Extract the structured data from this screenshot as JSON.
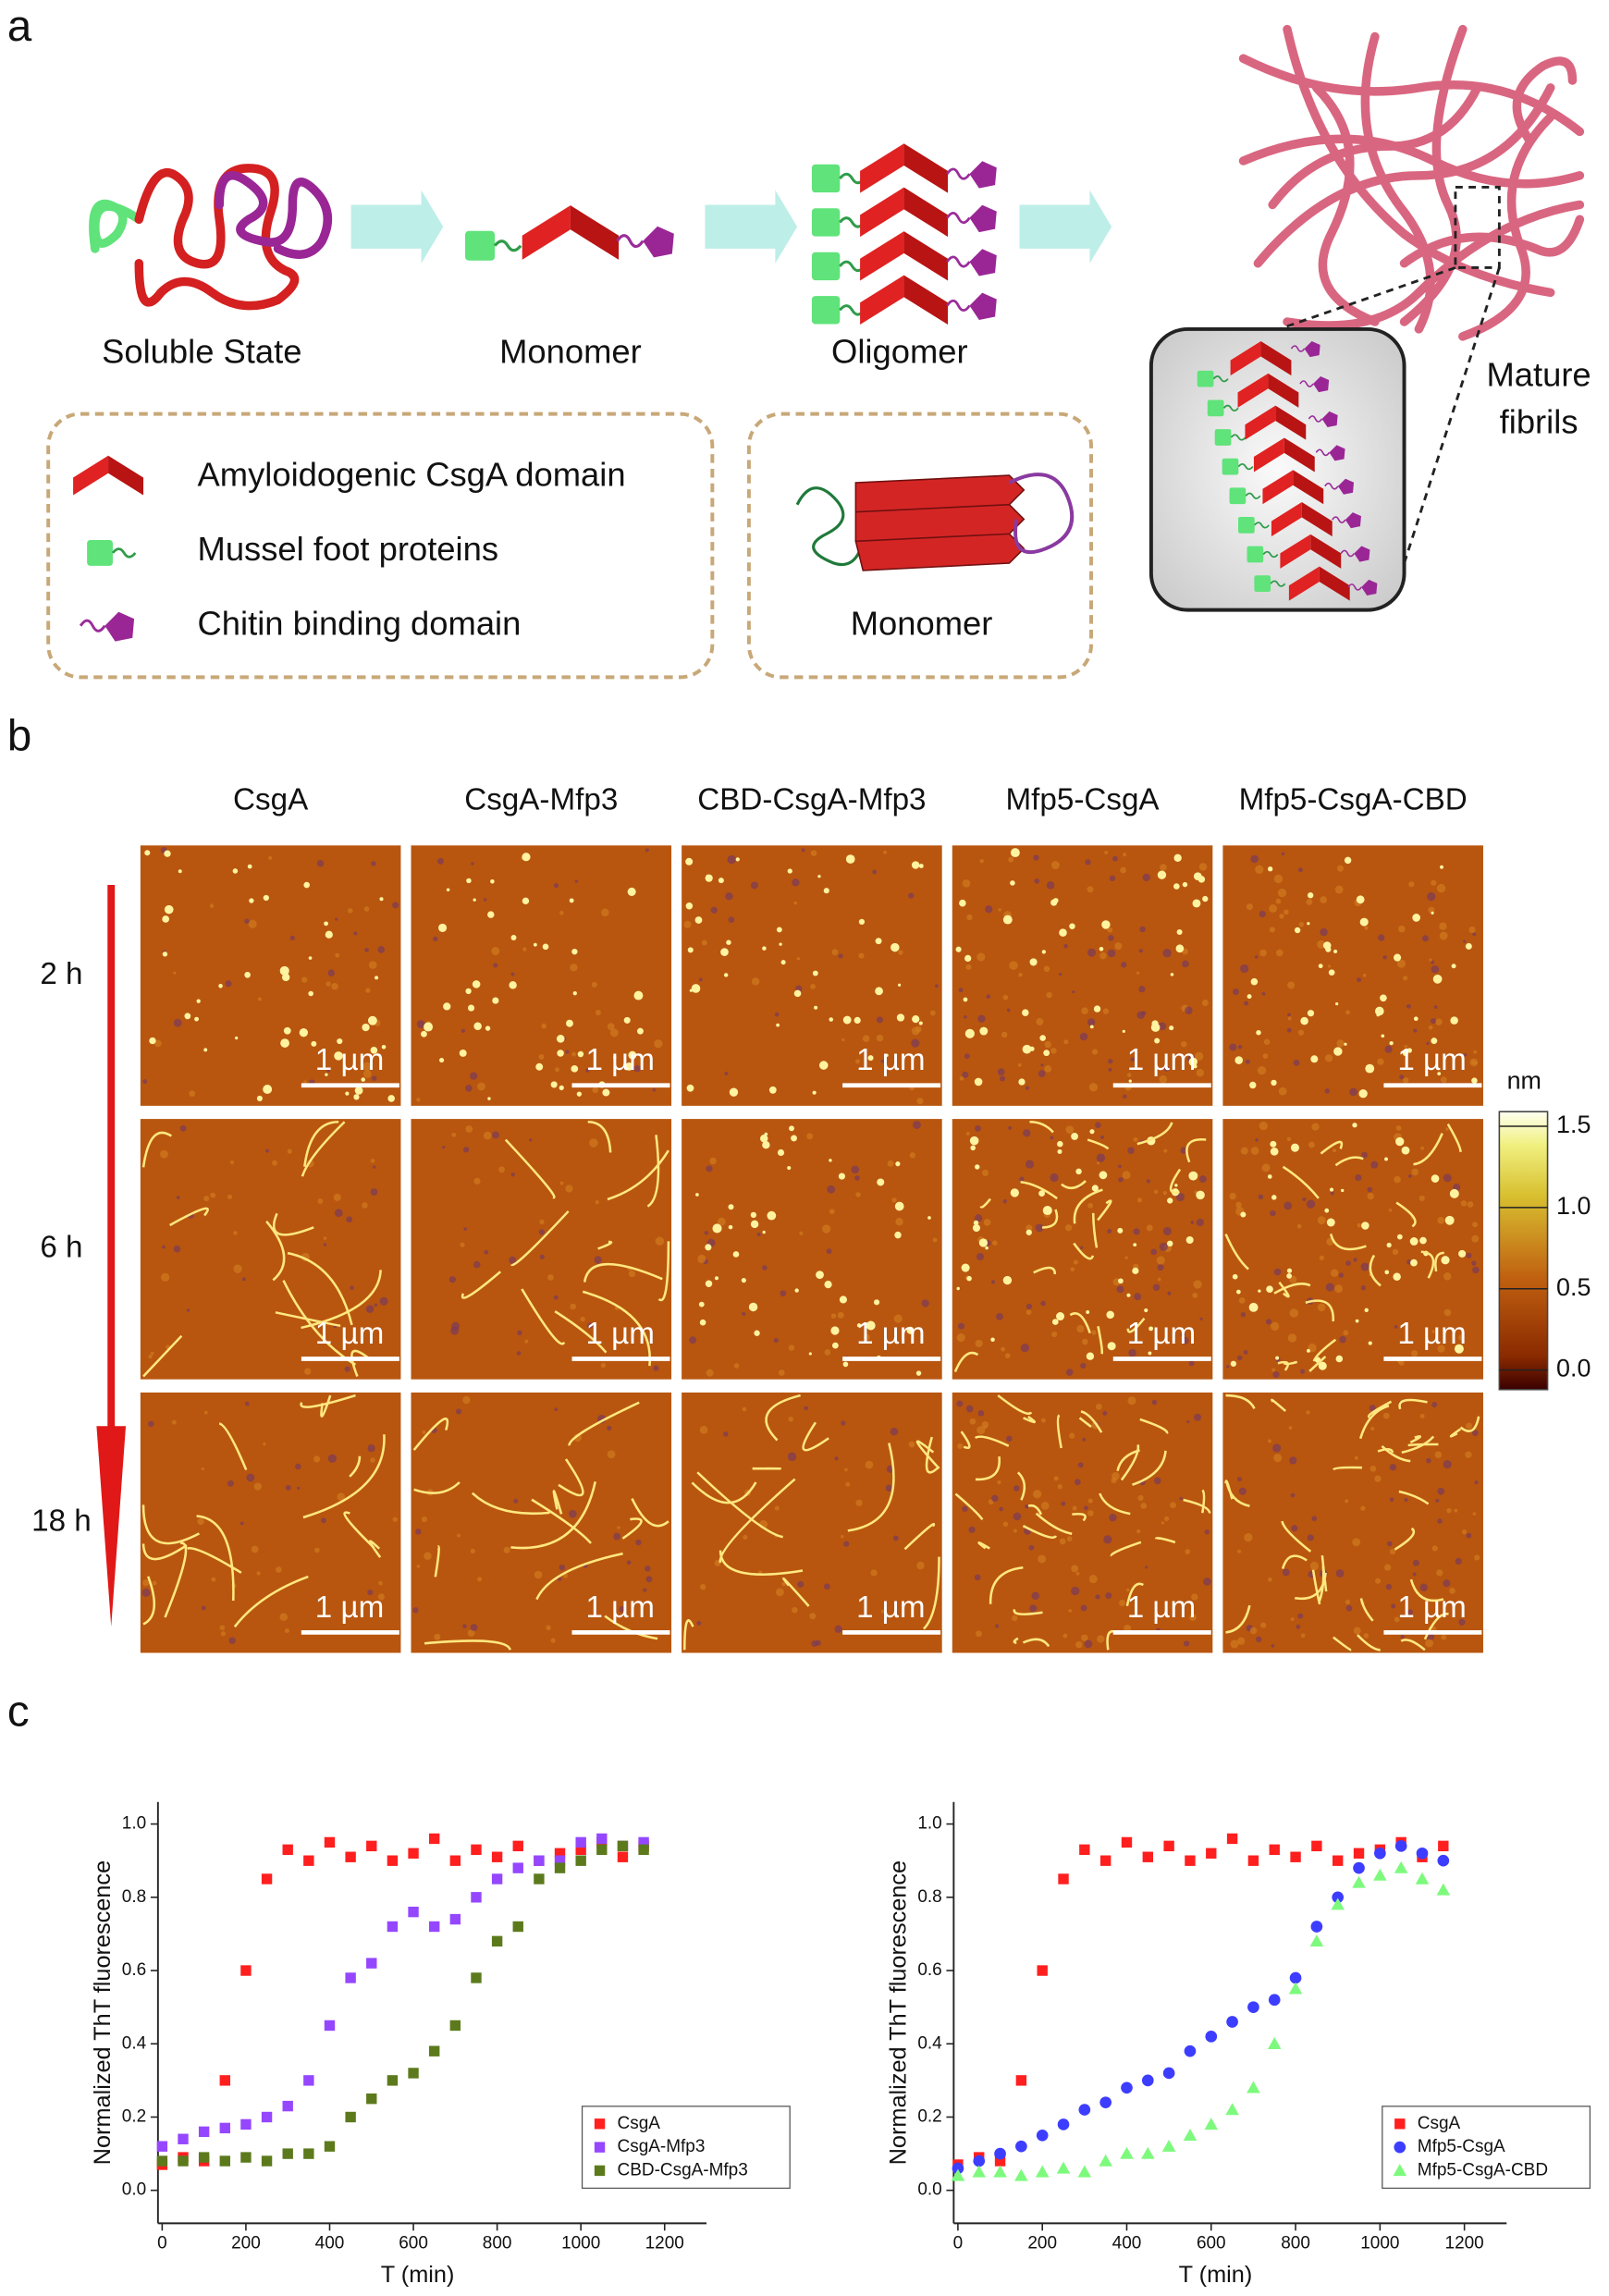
{
  "panel_labels": [
    "a",
    "b",
    "c"
  ],
  "panel_a": {
    "stages": [
      "Soluble State",
      "Monomer",
      "Oligomer"
    ],
    "mature_fibrils": [
      "Mature",
      "fibrils"
    ],
    "legend": [
      "Amyloidogenic CsgA domain",
      "Mussel foot proteins",
      "Chitin binding domain"
    ],
    "structure_label": "Monomer"
  },
  "panel_b": {
    "columns": [
      "CsgA",
      "CsgA-Mfp3",
      "CBD-CsgA-Mfp3",
      "Mfp5-CsgA",
      "Mfp5-CsgA-CBD"
    ],
    "rows": [
      "2 h",
      "6 h",
      "18 h"
    ],
    "scale_bar": "1 µm",
    "colorbar": {
      "unit": "nm",
      "lim": [
        -0.12,
        1.59
      ],
      "ticks": [
        {
          "value": 0,
          "label": "0.0"
        },
        0.5,
        {
          "value": 1,
          "label": "1.0"
        },
        1.5
      ]
    }
  },
  "chart_data": [
    {
      "type": "scatter",
      "xlabel": "T (min)",
      "ylabel": "Normalized ThT fluorescence",
      "x": [
        0,
        50,
        100,
        150,
        200,
        250,
        300,
        350,
        400,
        450,
        500,
        550,
        600,
        650,
        700,
        750,
        800,
        850,
        900,
        950,
        1000,
        1050,
        1100,
        1150
      ],
      "xlim": [
        -10,
        1300
      ],
      "xticks": [
        0,
        200,
        400,
        600,
        800,
        1000,
        1200
      ],
      "ylim": [
        -0.09,
        1.06
      ],
      "yticks": [
        {
          "value": 0,
          "label": "0.0"
        },
        0.2,
        0.4,
        0.6,
        0.8,
        {
          "value": 1,
          "label": "1.0"
        }
      ],
      "legend": "lower right",
      "series": [
        {
          "name": "CsgA",
          "color": "#ff1f1f",
          "marker": "square",
          "values": [
            0.07,
            0.09,
            0.08,
            0.3,
            0.6,
            0.85,
            0.93,
            0.9,
            0.95,
            0.91,
            0.94,
            0.9,
            0.92,
            0.96,
            0.9,
            0.93,
            0.91,
            0.94,
            0.9,
            0.92,
            0.93,
            0.95,
            0.91,
            0.94
          ]
        },
        {
          "name": "CsgA-Mfp3",
          "color": "#9547ff",
          "marker": "square",
          "values": [
            0.12,
            0.14,
            0.16,
            0.17,
            0.18,
            0.2,
            0.23,
            0.3,
            0.45,
            0.58,
            0.62,
            0.72,
            0.76,
            0.72,
            0.74,
            0.8,
            0.85,
            0.88,
            0.9,
            0.9,
            0.95,
            0.96,
            0.94,
            0.95
          ]
        },
        {
          "name": "CBD-CsgA-Mfp3",
          "color": "#5c7a1c",
          "marker": "square",
          "values": [
            0.08,
            0.08,
            0.09,
            0.08,
            0.09,
            0.08,
            0.1,
            0.1,
            0.12,
            0.2,
            0.25,
            0.3,
            0.32,
            0.38,
            0.45,
            0.58,
            0.68,
            0.72,
            0.85,
            0.88,
            0.9,
            0.93,
            0.94,
            0.93
          ]
        }
      ]
    },
    {
      "type": "scatter",
      "xlabel": "T (min)",
      "ylabel": "Normalized ThT fluorescence",
      "x": [
        0,
        50,
        100,
        150,
        200,
        250,
        300,
        350,
        400,
        450,
        500,
        550,
        600,
        650,
        700,
        750,
        800,
        850,
        900,
        950,
        1000,
        1050,
        1100,
        1150
      ],
      "xlim": [
        -10,
        1300
      ],
      "xticks": [
        0,
        200,
        400,
        600,
        800,
        1000,
        1200
      ],
      "ylim": [
        -0.09,
        1.06
      ],
      "yticks": [
        {
          "value": 0,
          "label": "0.0"
        },
        0.2,
        0.4,
        0.6,
        0.8,
        {
          "value": 1,
          "label": "1.0"
        }
      ],
      "legend": "lower right",
      "series": [
        {
          "name": "CsgA",
          "color": "#ff1f1f",
          "marker": "square",
          "values": [
            0.07,
            0.09,
            0.08,
            0.3,
            0.6,
            0.85,
            0.93,
            0.9,
            0.95,
            0.91,
            0.94,
            0.9,
            0.92,
            0.96,
            0.9,
            0.93,
            0.91,
            0.94,
            0.9,
            0.92,
            0.93,
            0.95,
            0.91,
            0.94
          ]
        },
        {
          "name": "Mfp5-CsgA",
          "color": "#3d3dff",
          "marker": "circle",
          "values": [
            0.06,
            0.08,
            0.1,
            0.12,
            0.15,
            0.18,
            0.22,
            0.24,
            0.28,
            0.3,
            0.32,
            0.38,
            0.42,
            0.46,
            0.5,
            0.52,
            0.58,
            0.72,
            0.8,
            0.88,
            0.92,
            0.94,
            0.92,
            0.9
          ]
        },
        {
          "name": "Mfp5-CsgA-CBD",
          "color": "#7dfa7d",
          "marker": "triangle",
          "values": [
            0.04,
            0.05,
            0.05,
            0.04,
            0.05,
            0.06,
            0.05,
            0.08,
            0.1,
            0.1,
            0.12,
            0.15,
            0.18,
            0.22,
            0.28,
            0.4,
            0.55,
            0.68,
            0.78,
            0.84,
            0.86,
            0.88,
            0.85,
            0.82
          ]
        }
      ]
    }
  ]
}
